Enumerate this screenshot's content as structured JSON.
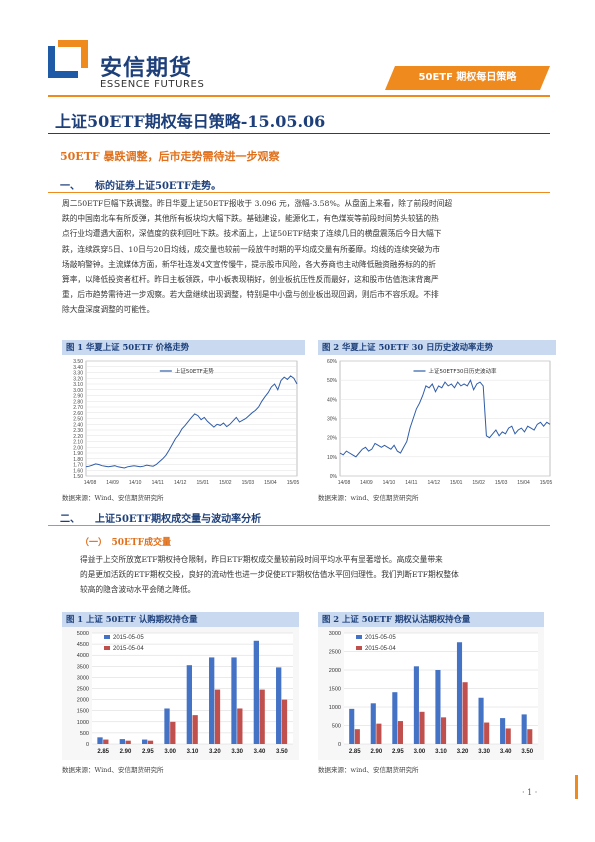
{
  "brand": {
    "name_cn": "安信期货",
    "name_en": "ESSENCE FUTURES"
  },
  "header": {
    "band": "50ETF 期权每日策略"
  },
  "title": "上证50ETF期权每日策略-15.05.06",
  "subtitle": "50ETF 暴跌调整，后市走势需待进一步观察",
  "section1": {
    "head": "一、　　标的证券上证50ETF走势。",
    "lines": [
      "周二50ETF巨幅下跌调整。昨日华夏上证50ETF报收于 3.096 元，涨幅-3.58%。从盘面上来看，除了前段时间超",
      "跌的中国南北车有所反弹，其他所有板块均大幅下跌。基础建设，能源化工，有色煤炭等前段时间势头较猛的热",
      "点行业均遭遇大面积，深值度的获利回吐下跌。技术面上，上证50ETF结束了连续几日的横盘震荡后今日大幅下",
      "跌，连续跌穿5日、10日与20日均线，成交量也较前一段放牛时期的平均成交量有所萎靡。均线的连续突破为市",
      "场敲响警钟。主流媒体方面，新华社连发4文宣传慢牛，提示股市风险，各大券商也主动降低融资融券标的的折",
      "算率，以降低投资者杠杆。昨日主板领跌，中小板表现稍好，创业板抗压性反而最好，这和股市估值泡沫背离严",
      "重，后市趋势需待进一步观察。若大盘继续出现调整，特别是中小盘与创业板出现回调，则后市不容乐观。不排",
      "除大盘深度调整的可能性。"
    ]
  },
  "section2": {
    "head": "二、　　上证50ETF期权成交量与波动率分析",
    "sub_head": "（一）　50ETF成交量",
    "lines": [
      "得益于上交所放宽ETF期权持仓限制，昨日ETF期权成交量较前段时间平均水平有显著增长。高成交量带来",
      "的是更加活跃的ETF期权交投，良好的流动性也进一步促使ETF期权估值水平回归理性。我们判断ETF期权整体",
      "较高的隐含波动水平会随之降低。"
    ]
  },
  "fig1": {
    "title": "图 1 华夏上证 50ETF 价格走势",
    "source": "数据来源：Wind、安信期货研究所"
  },
  "fig2": {
    "title": "图 2 华夏上证 50ETF 30 日历史波动率走势",
    "source": "数据来源：wind、安信期货研究所"
  },
  "fig3": {
    "title": "图 1 上证 50ETF 认购期权持仓量",
    "source": "数据来源：Wind、安信期货研究所"
  },
  "fig4": {
    "title": "图 2 上证 50ETF 期权认沽期权持仓量",
    "source": "数据来源：wind、安信期货研究所"
  },
  "page": {
    "number": "· 1 ·"
  },
  "colors": {
    "accent_orange": "#ef8a1f",
    "brand_blue": "#1d3f7a",
    "series_blue": "#4472c4",
    "series_red": "#c0504d",
    "chart_header": "#c9daf0"
  },
  "chart_data": [
    {
      "type": "line",
      "legend": [
        "上证50ETF走势"
      ],
      "x_ticks": [
        "14/08",
        "14/09",
        "14/10",
        "14/11",
        "14/12",
        "15/01",
        "15/02",
        "15/03",
        "15/04",
        "15/05"
      ],
      "y_ticks": [
        "1.50",
        "1.60",
        "1.70",
        "1.80",
        "1.90",
        "2.00",
        "2.10",
        "2.20",
        "2.30",
        "2.40",
        "2.50",
        "2.60",
        "2.70",
        "2.80",
        "2.90",
        "3.00",
        "3.10",
        "3.20",
        "3.30",
        "3.40",
        "3.50"
      ],
      "ylim": [
        1.5,
        3.5
      ],
      "series": [
        {
          "name": "上证50ETF走势",
          "values": [
            1.66,
            1.67,
            1.69,
            1.71,
            1.7,
            1.68,
            1.67,
            1.66,
            1.67,
            1.68,
            1.66,
            1.65,
            1.64,
            1.66,
            1.67,
            1.68,
            1.67,
            1.66,
            1.67,
            1.69,
            1.68,
            1.67,
            1.7,
            1.75,
            1.8,
            1.86,
            1.95,
            2.05,
            2.15,
            2.22,
            2.32,
            2.38,
            2.45,
            2.52,
            2.58,
            2.55,
            2.48,
            2.52,
            2.45,
            2.4,
            2.35,
            2.4,
            2.38,
            2.42,
            2.36,
            2.4,
            2.46,
            2.52,
            2.44,
            2.47,
            2.5,
            2.55,
            2.6,
            2.64,
            2.7,
            2.8,
            2.88,
            2.95,
            3.05,
            3.1,
            3.0,
            3.16,
            3.22,
            3.18,
            3.24,
            3.2,
            3.1
          ]
        }
      ]
    },
    {
      "type": "line",
      "legend": [
        "上证50ETF30日历史波动率"
      ],
      "x_ticks": [
        "14/08",
        "14/09",
        "14/10",
        "14/11",
        "14/12",
        "15/01",
        "15/02",
        "15/03",
        "15/04",
        "15/05"
      ],
      "y_ticks": [
        "0%",
        "10%",
        "20%",
        "30%",
        "40%",
        "50%",
        "60%"
      ],
      "ylim": [
        0,
        60
      ],
      "series": [
        {
          "name": "上证50ETF30日历史波动率",
          "values": [
            12,
            11,
            13,
            12,
            11,
            10,
            12,
            14,
            15,
            13,
            14,
            17,
            16,
            15,
            16,
            15,
            14,
            16,
            13,
            12,
            15,
            18,
            25,
            30,
            35,
            38,
            42,
            47,
            46,
            48,
            44,
            47,
            46,
            49,
            47,
            48,
            46,
            49,
            47,
            48,
            47,
            50,
            45,
            48,
            49,
            47,
            21,
            20,
            22,
            24,
            21,
            23,
            22,
            25,
            26,
            22,
            24,
            25,
            23,
            26,
            25,
            24,
            27,
            28,
            26,
            28,
            27
          ]
        }
      ]
    },
    {
      "type": "bar",
      "categories": [
        "2.85",
        "2.90",
        "2.95",
        "3.00",
        "3.10",
        "3.20",
        "3.30",
        "3.40",
        "3.50"
      ],
      "y_ticks": [
        "0",
        "500",
        "1000",
        "1500",
        "2000",
        "2500",
        "3000",
        "3500",
        "4000",
        "4500",
        "5000"
      ],
      "ylim": [
        0,
        5000
      ],
      "series": [
        {
          "name": "2015-05-05",
          "values": [
            300,
            220,
            200,
            1600,
            3550,
            3900,
            3900,
            4650,
            3450
          ]
        },
        {
          "name": "2015-05-04",
          "values": [
            200,
            150,
            150,
            1000,
            1300,
            2450,
            1600,
            2450,
            2000
          ]
        }
      ]
    },
    {
      "type": "bar",
      "categories": [
        "2.85",
        "2.90",
        "2.95",
        "3.00",
        "3.10",
        "3.20",
        "3.30",
        "3.40",
        "3.50"
      ],
      "y_ticks": [
        "0",
        "500",
        "1000",
        "1500",
        "2000",
        "2500",
        "3000"
      ],
      "ylim": [
        0,
        3000
      ],
      "series": [
        {
          "name": "2015-05-05",
          "values": [
            950,
            1100,
            1400,
            2100,
            2000,
            2750,
            1250,
            700,
            800
          ]
        },
        {
          "name": "2015-05-04",
          "values": [
            400,
            550,
            620,
            870,
            720,
            1670,
            580,
            420,
            400
          ]
        }
      ]
    }
  ]
}
